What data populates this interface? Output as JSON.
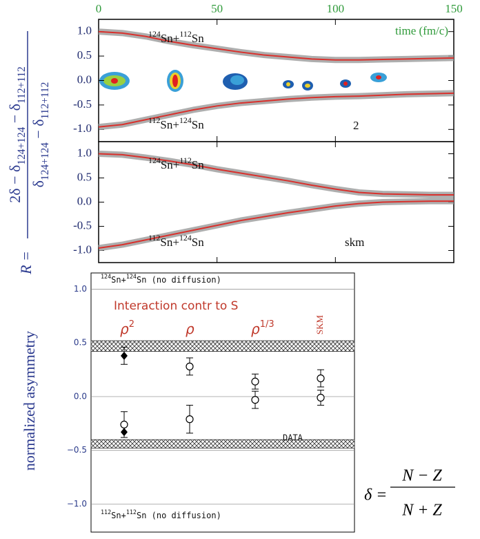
{
  "chart_data": [
    {
      "type": "line",
      "xlim": [
        0,
        150
      ],
      "xticks": [
        0,
        50,
        100,
        150
      ],
      "ylim": [
        -1.25,
        1.25
      ],
      "yticks": [
        {
          "value": 1,
          "label": "1.0"
        },
        0.5,
        {
          "value": 0,
          "label": "0.0"
        },
        -0.5,
        {
          "value": -1,
          "label": "-1.0"
        }
      ],
      "x": [
        0,
        10,
        20,
        30,
        40,
        50,
        60,
        70,
        80,
        90,
        100,
        110,
        120,
        130,
        140,
        150
      ],
      "series": [
        {
          "color": "#d9302c",
          "values": [
            1.0,
            0.97,
            0.9,
            0.8,
            0.72,
            0.65,
            0.58,
            0.52,
            0.48,
            0.44,
            0.42,
            0.42,
            0.43,
            0.44,
            0.45,
            0.46
          ]
        },
        {
          "color": "#d9302c",
          "values": [
            -0.95,
            -0.9,
            -0.8,
            -0.7,
            -0.6,
            -0.52,
            -0.46,
            -0.42,
            -0.38,
            -0.35,
            -0.33,
            -0.32,
            -0.3,
            -0.28,
            -0.27,
            -0.26
          ]
        }
      ],
      "annotations": [
        [
          "124",
          "Sn+",
          "112",
          "Sn"
        ],
        [
          "112",
          "Sn+",
          "124",
          "Sn"
        ]
      ],
      "xlabel": "time (fm/c)",
      "panel_label": "2"
    },
    {
      "type": "line",
      "xlim": [
        0,
        150
      ],
      "ylim": [
        -1.25,
        1.25
      ],
      "yticks": [
        {
          "value": 1,
          "label": "1.0"
        },
        0.5,
        {
          "value": 0,
          "label": "0.0"
        },
        -0.5,
        {
          "value": -1,
          "label": "-1.0"
        }
      ],
      "x": [
        0,
        10,
        20,
        30,
        40,
        50,
        60,
        70,
        80,
        90,
        100,
        110,
        120,
        130,
        140,
        150
      ],
      "series": [
        {
          "color": "#d9302c",
          "values": [
            1.0,
            0.98,
            0.92,
            0.85,
            0.77,
            0.68,
            0.6,
            0.52,
            0.44,
            0.35,
            0.27,
            0.2,
            0.17,
            0.16,
            0.15,
            0.15
          ]
        },
        {
          "color": "#d9302c",
          "values": [
            -0.95,
            -0.88,
            -0.78,
            -0.68,
            -0.58,
            -0.48,
            -0.38,
            -0.3,
            -0.22,
            -0.15,
            -0.08,
            -0.03,
            0.0,
            0.01,
            0.02,
            0.02
          ]
        }
      ],
      "annotations": [
        [
          "124",
          "Sn+",
          "112",
          "Sn"
        ],
        [
          "112",
          "Sn+",
          "124",
          "Sn"
        ]
      ],
      "panel_label": "skm"
    },
    {
      "type": "scatter",
      "ylim": [
        -1.26,
        1.15
      ],
      "yticks": [
        {
          "value": 1,
          "label": "1.0"
        },
        0.5,
        {
          "value": 0,
          "label": "0.0"
        },
        {
          "value": -0.5,
          "label": "−0.5"
        },
        {
          "value": -1,
          "label": "−1.0"
        }
      ],
      "ylabel": "normalized asymmetry",
      "subtitle": "Interaction contr to S",
      "categories": [
        "ρ",
        "ρ",
        "ρ",
        "SKM"
      ],
      "category_superscripts": [
        "2",
        null,
        "1/3",
        null
      ],
      "series": [
        {
          "marker": "diamond",
          "color": "#000000",
          "values": [
            0.38,
            null,
            null,
            null
          ],
          "errors": [
            0.08,
            null,
            null,
            null
          ]
        },
        {
          "marker": "diamond",
          "color": "#000000",
          "values": [
            -0.33,
            null,
            null,
            null
          ]
        },
        {
          "marker": "circle",
          "color": "#000000",
          "values": [
            null,
            0.28,
            0.14,
            0.17
          ],
          "errors": [
            null,
            0.08,
            0.07,
            0.08
          ]
        },
        {
          "marker": "circle",
          "color": "#000000",
          "values": [
            -0.26,
            -0.21,
            -0.03,
            -0.01
          ],
          "errors": [
            0.12,
            0.13,
            0.08,
            0.07
          ]
        }
      ],
      "bands": [
        [
          0.42,
          0.52
        ],
        [
          -0.48,
          -0.4
        ]
      ],
      "band_label": "DATA",
      "top_label": [
        "124",
        "Sn+",
        "124",
        "Sn (no diffusion)"
      ],
      "bottom_label": [
        "112",
        "Sn+",
        "112",
        "Sn (no diffusion)"
      ]
    }
  ],
  "ylabel": {
    "lhs": "R =",
    "numerator": [
      "2δ − δ",
      "124+124",
      " − δ",
      "112+112"
    ],
    "denominator": [
      "δ",
      "124+124",
      " − δ",
      "112+112"
    ]
  },
  "formula": {
    "lhs": "δ =",
    "numerator": "N − Z",
    "denominator": "N + Z"
  }
}
